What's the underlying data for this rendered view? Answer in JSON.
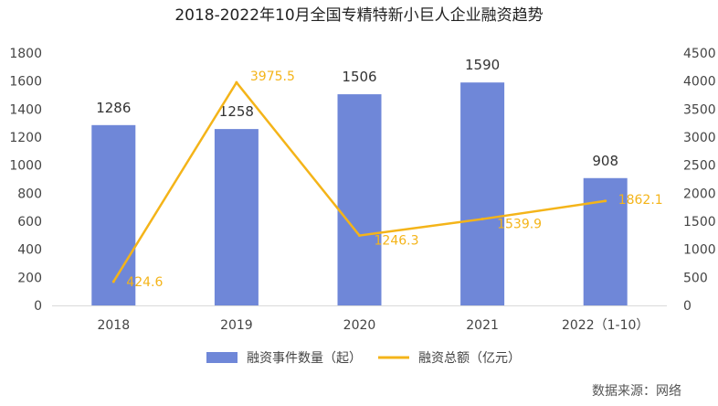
{
  "chart_data": {
    "type": "bar",
    "title": "2018-2022年10月全国专精特新小巨人企业融资趋势",
    "categories": [
      "2018",
      "2019",
      "2020",
      "2021",
      "2022（1-10）"
    ],
    "series": [
      {
        "name": "融资事件数量（起）",
        "type": "bar",
        "axis": "left",
        "color": "#6f87d8",
        "values": [
          1286,
          1258,
          1506,
          1590,
          908
        ]
      },
      {
        "name": "融资总额（亿元）",
        "type": "line",
        "axis": "right",
        "color": "#f4b419",
        "values": [
          424.6,
          3975.5,
          1246.3,
          1539.9,
          1862.1
        ],
        "labels": [
          "424.6",
          "3975.5",
          "1246.3",
          "1539.9",
          "1862.1"
        ]
      }
    ],
    "y_left": {
      "min": 0,
      "max": 1800,
      "step": 200,
      "ticks": [
        "0",
        "200",
        "400",
        "600",
        "800",
        "1000",
        "1200",
        "1400",
        "1600",
        "1800"
      ]
    },
    "y_right": {
      "min": 0,
      "max": 4500,
      "step": 500,
      "ticks": [
        "0",
        "500",
        "1000",
        "1500",
        "2000",
        "2500",
        "3000",
        "3500",
        "4000",
        "4500"
      ]
    },
    "legend": {
      "placement": "bottom",
      "items": [
        "融资事件数量（起）",
        "融资总额（亿元）"
      ]
    },
    "grid": false,
    "source": "数据来源：网络"
  }
}
